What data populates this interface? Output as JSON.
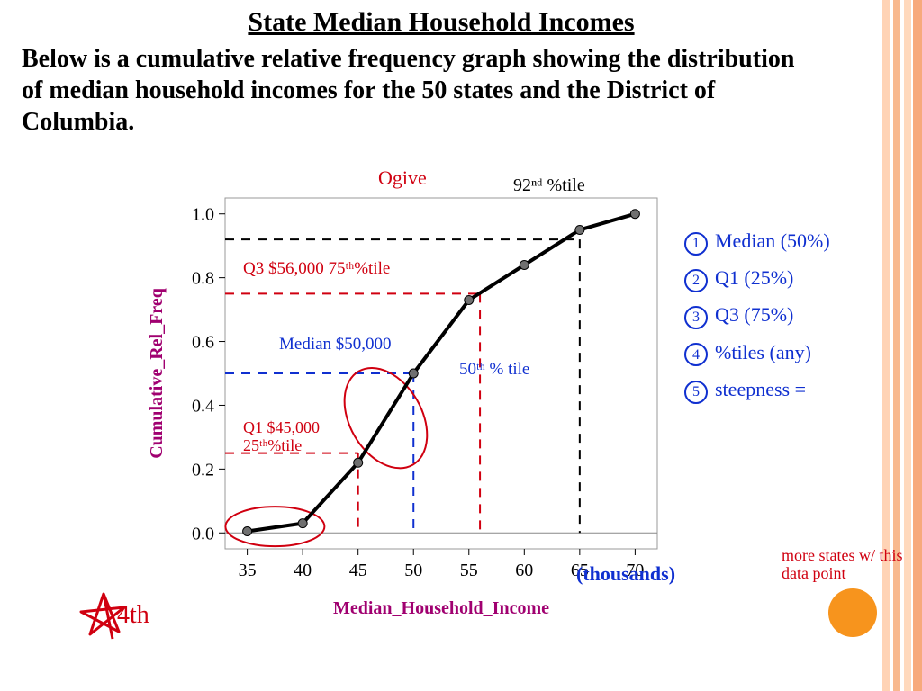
{
  "title": "State Median Household Incomes",
  "description": "Below is a cumulative relative frequency graph showing the distribution of median household incomes for the 50 states and the District of Columbia.",
  "chart": {
    "type": "line",
    "x_values": [
      35,
      40,
      45,
      50,
      55,
      60,
      65,
      70
    ],
    "y_values": [
      0.005,
      0.03,
      0.22,
      0.5,
      0.73,
      0.84,
      0.95,
      1.0
    ],
    "xlim": [
      33,
      72
    ],
    "ylim": [
      -0.05,
      1.05
    ],
    "xtick_step": 5,
    "ytick_step": 0.2,
    "xlabel": "Median_Household_Income",
    "ylabel": "Cumulative_Rel_Freq",
    "axis_label_color": "#a00070",
    "axis_label_fontsize": 20,
    "tick_fontsize": 20,
    "tick_color": "#000000",
    "line_color": "#000000",
    "line_width": 4,
    "marker_fill": "#707070",
    "marker_stroke": "#000000",
    "marker_radius": 5,
    "plot_border_color": "#999999",
    "background_color": "#ffffff"
  },
  "handwritten": {
    "ogive": {
      "text": "Ogive",
      "color": "#d00010"
    },
    "p92": {
      "text": "92ⁿᵈ %tile",
      "color": "#000000"
    },
    "q3line": {
      "text": "Q3 $56,000  75ᵗʰ%tile",
      "color": "#d00010",
      "y": 0.75,
      "x_to": 56
    },
    "median_line": {
      "text": "Median $50,000",
      "color": "#1030d0",
      "y": 0.5,
      "x_to": 50,
      "extra": "50ᵗʰ % tile"
    },
    "q1line": {
      "text": "Q1 $45,000",
      "color": "#d00010",
      "y": 0.25,
      "x_to": 45,
      "extra": "25ᵗʰ%tile"
    },
    "thousands": {
      "text": "(thousands)",
      "color": "#1030d0"
    },
    "more_states": {
      "text": "more states w/ this data point",
      "color": "#d00010"
    },
    "fourth": {
      "text": "4th",
      "color": "#d00010"
    }
  },
  "notes": {
    "color": "#1030d0",
    "items": [
      "Median (50%)",
      "Q1 (25%)",
      "Q3 (75%)",
      "%tiles (any)",
      "steepness ="
    ]
  },
  "decoration": {
    "stripe_colors": [
      "#ffd3b5",
      "#f8b98f",
      "#ffd9bd",
      "#f7a97c"
    ],
    "orange_dot_color": "#f7941d",
    "orange_dot_diameter": 54
  }
}
